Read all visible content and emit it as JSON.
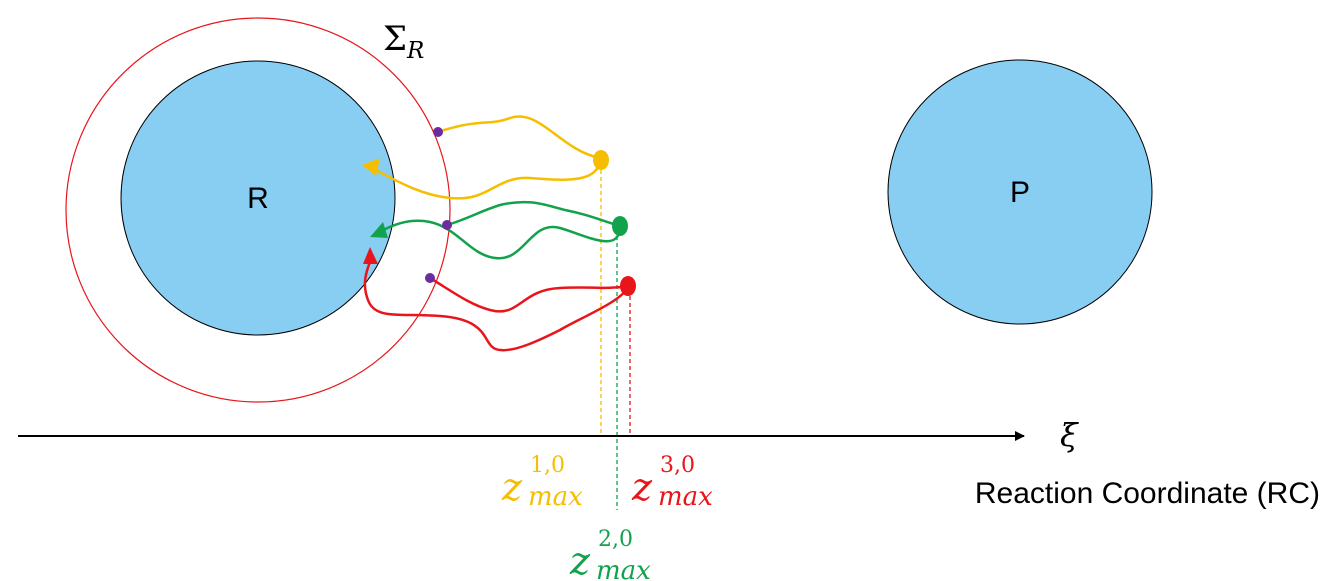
{
  "states": {
    "reactant_label": "R",
    "product_label": "P",
    "sigma_main": "Σ",
    "sigma_sub": "R"
  },
  "axis": {
    "symbol": "ξ",
    "caption": "Reaction Coordinate (RC)"
  },
  "zmax": [
    {
      "base": "z",
      "sup": "1,0",
      "sub": "max",
      "color": "#F5BE00"
    },
    {
      "base": "z",
      "sup": "2,0",
      "sub": "max",
      "color": "#13A24C"
    },
    {
      "base": "z",
      "sup": "3,0",
      "sub": "max",
      "color": "#E8151A"
    }
  ],
  "colors": {
    "basin_fill": "#87CEF2",
    "boundary": "#E8151A",
    "crossing_point": "#6B2D9E",
    "axis": "#000000"
  }
}
